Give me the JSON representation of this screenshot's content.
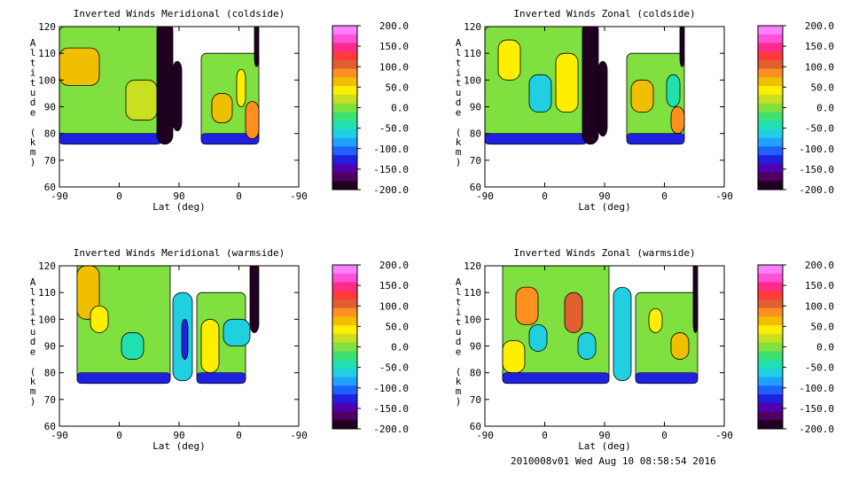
{
  "footer": "2010008v01 Wed Aug 10 08:58:54 2016",
  "colorbar": {
    "ticks": [
      "200.0",
      "150.0",
      "100.0",
      "50.0",
      "0.0",
      "-50.0",
      "-100.0",
      "-150.0",
      "-200.0"
    ],
    "colors": [
      "#ff80ff",
      "#ff50d8",
      "#ff2a8a",
      "#ff3a3a",
      "#e06030",
      "#ff9020",
      "#f0c000",
      "#ffee00",
      "#c8e020",
      "#80e040",
      "#40e070",
      "#20e0b0",
      "#20d0e0",
      "#20a0ff",
      "#2060ff",
      "#2020e0",
      "#5000b0",
      "#500060",
      "#200020"
    ]
  },
  "axes": {
    "xticks": [
      "-90",
      "0",
      "90",
      "0",
      "-90"
    ],
    "yticks": [
      "120",
      "110",
      "100",
      "90",
      "80",
      "70",
      "60"
    ],
    "xlabel": "Lat (deg)",
    "ylabel": "Altitude (km)"
  },
  "chart_data": [
    {
      "type": "heatmap",
      "title": "Inverted Winds Meridional (coldside)",
      "xlabel": "Lat (deg)",
      "ylabel": "Altitude (km)",
      "x_ticks": [
        "-90",
        "0",
        "90",
        "0",
        "-90"
      ],
      "ylim": [
        60,
        120
      ],
      "colorbar_range": [
        -200,
        200
      ],
      "regions": [
        {
          "x": [
            -90,
            25
          ],
          "y": [
            76,
            120
          ],
          "value": 0
        },
        {
          "x": [
            -90,
            -45
          ],
          "y": [
            98,
            112
          ],
          "value": 60
        },
        {
          "x": [
            -15,
            20
          ],
          "y": [
            85,
            100
          ],
          "value": 30
        },
        {
          "x": [
            20,
            38
          ],
          "y": [
            76,
            122
          ],
          "value": -180
        },
        {
          "x": [
            38,
            48
          ],
          "y": [
            81,
            107
          ],
          "value": -180
        },
        {
          "x": [
            70,
            135
          ],
          "y": [
            76,
            110
          ],
          "value": 0
        },
        {
          "x": [
            82,
            105
          ],
          "y": [
            84,
            95
          ],
          "value": 60
        },
        {
          "x": [
            110,
            120
          ],
          "y": [
            90,
            104
          ],
          "value": 40
        },
        {
          "x": [
            120,
            135
          ],
          "y": [
            78,
            92
          ],
          "value": 80
        },
        {
          "x": [
            130,
            135
          ],
          "y": [
            105,
            122
          ],
          "value": -180
        }
      ]
    },
    {
      "type": "heatmap",
      "title": "Inverted Winds Zonal (coldside)",
      "xlabel": "Lat (deg)",
      "ylabel": "Altitude (km)",
      "x_ticks": [
        "-90",
        "0",
        "90",
        "0",
        "-90"
      ],
      "ylim": [
        60,
        120
      ],
      "colorbar_range": [
        -200,
        200
      ],
      "regions": [
        {
          "x": [
            -90,
            25
          ],
          "y": [
            76,
            120
          ],
          "value": 0
        },
        {
          "x": [
            -75,
            -50
          ],
          "y": [
            100,
            115
          ],
          "value": 40
        },
        {
          "x": [
            -40,
            -15
          ],
          "y": [
            88,
            102
          ],
          "value": -60
        },
        {
          "x": [
            -10,
            15
          ],
          "y": [
            88,
            110
          ],
          "value": 40
        },
        {
          "x": [
            20,
            38
          ],
          "y": [
            76,
            122
          ],
          "value": -180
        },
        {
          "x": [
            38,
            48
          ],
          "y": [
            79,
            107
          ],
          "value": -180
        },
        {
          "x": [
            70,
            135
          ],
          "y": [
            76,
            110
          ],
          "value": 0
        },
        {
          "x": [
            75,
            100
          ],
          "y": [
            88,
            100
          ],
          "value": 60
        },
        {
          "x": [
            115,
            130
          ],
          "y": [
            90,
            102
          ],
          "value": -40
        },
        {
          "x": [
            120,
            135
          ],
          "y": [
            80,
            90
          ],
          "value": 80
        },
        {
          "x": [
            130,
            135
          ],
          "y": [
            105,
            122
          ],
          "value": -180
        }
      ]
    },
    {
      "type": "heatmap",
      "title": "Inverted Winds Meridional (warmside)",
      "xlabel": "Lat (deg)",
      "ylabel": "Altitude (km)",
      "x_ticks": [
        "-90",
        "0",
        "90",
        "0",
        "-90"
      ],
      "ylim": [
        60,
        120
      ],
      "colorbar_range": [
        -200,
        200
      ],
      "regions": [
        {
          "x": [
            -70,
            35
          ],
          "y": [
            76,
            122
          ],
          "value": 0
        },
        {
          "x": [
            -70,
            -45
          ],
          "y": [
            100,
            120
          ],
          "value": 60
        },
        {
          "x": [
            -55,
            -35
          ],
          "y": [
            95,
            105
          ],
          "value": 40
        },
        {
          "x": [
            -20,
            5
          ],
          "y": [
            85,
            95
          ],
          "value": -40
        },
        {
          "x": [
            38,
            60
          ],
          "y": [
            77,
            110
          ],
          "value": -60
        },
        {
          "x": [
            48,
            55
          ],
          "y": [
            85,
            100
          ],
          "value": -120
        },
        {
          "x": [
            65,
            120
          ],
          "y": [
            76,
            110
          ],
          "value": 0
        },
        {
          "x": [
            70,
            90
          ],
          "y": [
            80,
            100
          ],
          "value": 40
        },
        {
          "x": [
            95,
            125
          ],
          "y": [
            90,
            100
          ],
          "value": -60
        },
        {
          "x": [
            125,
            135
          ],
          "y": [
            95,
            122
          ],
          "value": -180
        }
      ]
    },
    {
      "type": "heatmap",
      "title": "Inverted Winds Zonal (warmside)",
      "xlabel": "Lat (deg)",
      "ylabel": "Altitude (km)",
      "x_ticks": [
        "-90",
        "0",
        "90",
        "0",
        "-90"
      ],
      "ylim": [
        60,
        120
      ],
      "colorbar_range": [
        -200,
        200
      ],
      "regions": [
        {
          "x": [
            -70,
            50
          ],
          "y": [
            76,
            122
          ],
          "value": 0
        },
        {
          "x": [
            -55,
            -30
          ],
          "y": [
            98,
            112
          ],
          "value": 80
        },
        {
          "x": [
            -40,
            -20
          ],
          "y": [
            88,
            98
          ],
          "value": -60
        },
        {
          "x": [
            0,
            20
          ],
          "y": [
            95,
            110
          ],
          "value": 100
        },
        {
          "x": [
            15,
            35
          ],
          "y": [
            85,
            95
          ],
          "value": -60
        },
        {
          "x": [
            -70,
            -45
          ],
          "y": [
            80,
            92
          ],
          "value": 40
        },
        {
          "x": [
            55,
            75
          ],
          "y": [
            77,
            112
          ],
          "value": -60
        },
        {
          "x": [
            80,
            150
          ],
          "y": [
            76,
            110
          ],
          "value": 0
        },
        {
          "x": [
            95,
            110
          ],
          "y": [
            95,
            104
          ],
          "value": 40
        },
        {
          "x": [
            120,
            140
          ],
          "y": [
            85,
            95
          ],
          "value": 60
        },
        {
          "x": [
            145,
            150
          ],
          "y": [
            95,
            122
          ],
          "value": -180
        }
      ]
    }
  ]
}
